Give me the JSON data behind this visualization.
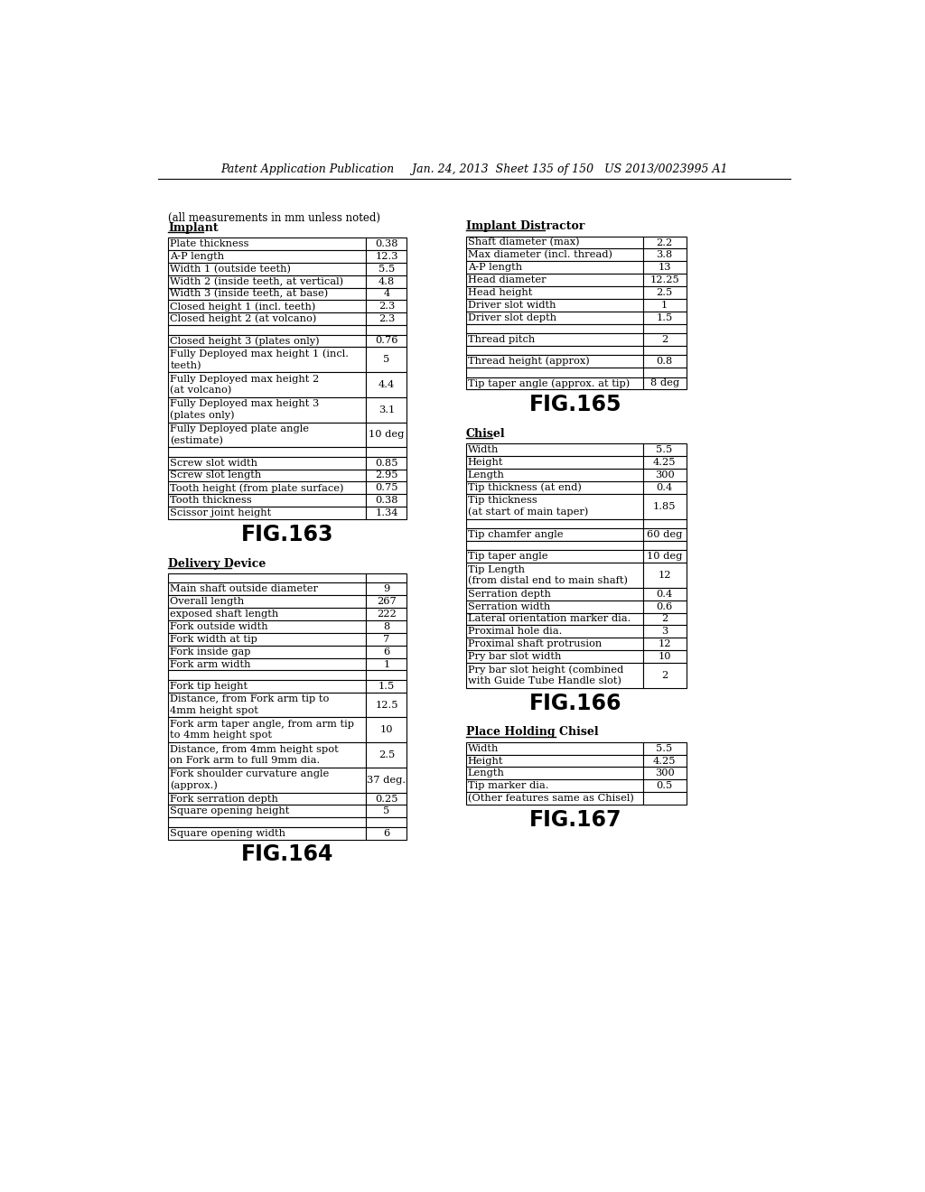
{
  "header": "Patent Application Publication     Jan. 24, 2013  Sheet 135 of 150   US 2013/0023995 A1",
  "note": "(all measurements in mm unless noted)",
  "fig163_title": "FIG.163",
  "fig164_title": "FIG.164",
  "fig165_title": "FIG.165",
  "fig166_title": "FIG.166",
  "fig167_title": "FIG.167",
  "implant_header": "Implant",
  "implant_rows": [
    [
      "Plate thickness",
      "0.38"
    ],
    [
      "A-P length",
      "12.3"
    ],
    [
      "Width 1 (outside teeth)",
      "5.5"
    ],
    [
      "Width 2 (inside teeth, at vertical)",
      "4.8"
    ],
    [
      "Width 3 (inside teeth, at base)",
      "4"
    ],
    [
      "Closed height 1 (incl. teeth)",
      "2.3"
    ],
    [
      "Closed height 2 (at volcano)",
      "2.3"
    ],
    [
      "",
      ""
    ],
    [
      "Closed height 3 (plates only)",
      "0.76"
    ],
    [
      "Fully Deployed max height 1 (incl.\nteeth)",
      "5"
    ],
    [
      "Fully Deployed max height 2\n(at volcano)",
      "4.4"
    ],
    [
      "Fully Deployed max height 3\n(plates only)",
      "3.1"
    ],
    [
      "Fully Deployed plate angle\n(estimate)",
      "10 deg"
    ],
    [
      "",
      ""
    ],
    [
      "Screw slot width",
      "0.85"
    ],
    [
      "Screw slot length",
      "2.95"
    ],
    [
      "Tooth height (from plate surface)",
      "0.75"
    ],
    [
      "Tooth thickness",
      "0.38"
    ],
    [
      "Scissor joint height",
      "1.34"
    ]
  ],
  "delivery_header": "Delivery Device",
  "delivery_rows": [
    [
      "",
      ""
    ],
    [
      "Main shaft outside diameter",
      "9"
    ],
    [
      "Overall length",
      "267"
    ],
    [
      "exposed shaft length",
      "222"
    ],
    [
      "Fork outside width",
      "8"
    ],
    [
      "Fork width at tip",
      "7"
    ],
    [
      "Fork inside gap",
      "6"
    ],
    [
      "Fork arm width",
      "1"
    ],
    [
      "",
      ""
    ],
    [
      "Fork tip height",
      "1.5"
    ],
    [
      "Distance, from Fork arm tip to\n4mm height spot",
      "12.5"
    ],
    [
      "Fork arm taper angle, from arm tip\nto 4mm height spot",
      "10"
    ],
    [
      "Distance, from 4mm height spot\non Fork arm to full 9mm dia.",
      "2.5"
    ],
    [
      "Fork shoulder curvature angle\n(approx.)",
      "37 deg."
    ],
    [
      "Fork serration depth",
      "0.25"
    ],
    [
      "Square opening height",
      "5"
    ],
    [
      "",
      ""
    ],
    [
      "Square opening width",
      "6"
    ]
  ],
  "implant_distractor_header": "Implant Distractor",
  "implant_distractor_rows": [
    [
      "Shaft diameter (max)",
      "2.2"
    ],
    [
      "Max diameter (incl. thread)",
      "3.8"
    ],
    [
      "A-P length",
      "13"
    ],
    [
      "Head diameter",
      "12.25"
    ],
    [
      "Head height",
      "2.5"
    ],
    [
      "Driver slot width",
      "1"
    ],
    [
      "Driver slot depth",
      "1.5"
    ],
    [
      "",
      ""
    ],
    [
      "Thread pitch",
      "2"
    ],
    [
      "",
      ""
    ],
    [
      "Thread height (approx)",
      "0.8"
    ],
    [
      "",
      ""
    ],
    [
      "Tip taper angle (approx. at tip)",
      "8 deg"
    ]
  ],
  "chisel_header": "Chisel",
  "chisel_rows": [
    [
      "Width",
      "5.5"
    ],
    [
      "Height",
      "4.25"
    ],
    [
      "Length",
      "300"
    ],
    [
      "Tip thickness (at end)",
      "0.4"
    ],
    [
      "Tip thickness\n(at start of main taper)",
      "1.85"
    ],
    [
      "",
      ""
    ],
    [
      "Tip chamfer angle",
      "60 deg"
    ],
    [
      "",
      ""
    ],
    [
      "Tip taper angle",
      "10 deg"
    ],
    [
      "Tip Length\n(from distal end to main shaft)",
      "12"
    ],
    [
      "Serration depth",
      "0.4"
    ],
    [
      "Serration width",
      "0.6"
    ],
    [
      "Lateral orientation marker dia.",
      "2"
    ],
    [
      "Proximal hole dia.",
      "3"
    ],
    [
      "Proximal shaft protrusion",
      "12"
    ],
    [
      "Pry bar slot width",
      "10"
    ],
    [
      "Pry bar slot height (combined\nwith Guide Tube Handle slot)",
      "2"
    ]
  ],
  "place_holding_chisel_header": "Place Holding Chisel",
  "place_holding_chisel_rows": [
    [
      "Width",
      "5.5"
    ],
    [
      "Height",
      "4.25"
    ],
    [
      "Length",
      "300"
    ],
    [
      "Tip marker dia.",
      "0.5"
    ],
    [
      "(Other features same as Chisel)",
      ""
    ]
  ],
  "bg_color": "#ffffff",
  "text_color": "#000000",
  "font_family": "DejaVu Serif",
  "fig_font_family": "DejaVu Sans"
}
